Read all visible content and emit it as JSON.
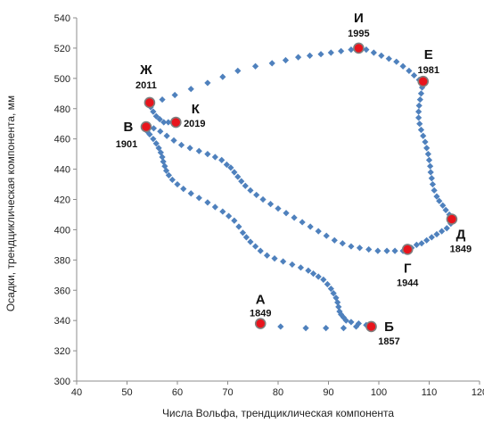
{
  "chart_data": {
    "type": "scatter",
    "title": "",
    "xlabel": "Числа Вольфа, трендциклическая компонента",
    "ylabel": "Осадки,  трендциклическая компонента, мм",
    "xlim": [
      40,
      120
    ],
    "ylim": [
      300,
      540
    ],
    "xticks": [
      "40",
      "50",
      "60",
      "70",
      "80",
      "90",
      "100",
      "110",
      "120"
    ],
    "yticks": [
      "300",
      "320",
      "340",
      "360",
      "380",
      "400",
      "420",
      "440",
      "460",
      "480",
      "500",
      "520",
      "540"
    ],
    "grid": false,
    "colors": {
      "series": "#4f81bd",
      "highlight_fill": "#e8141c",
      "highlight_stroke": "#7f7f7f",
      "axis": "#8c8c8c"
    },
    "series": [
      {
        "values": [
          [
            76.5,
            338
          ],
          [
            80.5,
            336
          ],
          [
            85.5,
            335
          ],
          [
            89.5,
            335
          ],
          [
            93,
            335
          ],
          [
            95.5,
            336
          ],
          [
            97.5,
            337
          ],
          [
            98.5,
            336
          ],
          [
            98,
            336
          ],
          [
            96,
            338
          ],
          [
            94.5,
            339
          ],
          [
            93.5,
            340
          ],
          [
            93,
            342
          ],
          [
            92.5,
            344
          ],
          [
            92.2,
            346
          ],
          [
            92,
            349
          ],
          [
            91.8,
            352
          ],
          [
            91.5,
            355
          ],
          [
            91,
            358
          ],
          [
            90.5,
            361
          ],
          [
            89.8,
            364
          ],
          [
            89,
            367
          ],
          [
            88,
            369
          ],
          [
            87,
            371
          ],
          [
            86,
            373
          ],
          [
            84.5,
            375
          ],
          [
            82.8,
            377
          ],
          [
            81,
            379
          ],
          [
            79.3,
            381
          ],
          [
            77.8,
            383
          ],
          [
            76.5,
            386
          ],
          [
            75.5,
            389
          ],
          [
            74.5,
            392
          ],
          [
            73.7,
            395
          ],
          [
            73,
            398
          ],
          [
            72.2,
            402
          ],
          [
            71.3,
            406
          ],
          [
            70.2,
            409
          ],
          [
            69,
            412
          ],
          [
            67.5,
            415
          ],
          [
            66,
            418
          ],
          [
            64.3,
            421
          ],
          [
            62.7,
            424
          ],
          [
            61.2,
            427
          ],
          [
            60,
            430
          ],
          [
            59,
            433
          ],
          [
            58.3,
            436
          ],
          [
            57.8,
            439
          ],
          [
            57.5,
            442
          ],
          [
            57.2,
            445
          ],
          [
            57,
            448
          ],
          [
            56.7,
            451
          ],
          [
            56.3,
            454
          ],
          [
            55.8,
            457
          ],
          [
            55.2,
            460
          ],
          [
            54.5,
            463
          ],
          [
            54,
            465
          ],
          [
            53.8,
            467
          ],
          [
            54.2,
            468
          ],
          [
            55.3,
            467
          ],
          [
            56.6,
            465
          ],
          [
            57.9,
            462
          ],
          [
            59.3,
            459
          ],
          [
            60.8,
            456
          ],
          [
            62.5,
            454
          ],
          [
            64.3,
            452
          ],
          [
            66,
            450
          ],
          [
            67.5,
            448
          ],
          [
            68.8,
            446
          ],
          [
            69.8,
            443
          ],
          [
            70.6,
            441
          ],
          [
            71.3,
            438
          ],
          [
            72,
            435
          ],
          [
            72.7,
            432
          ],
          [
            73.5,
            429
          ],
          [
            74.5,
            426
          ],
          [
            75.7,
            423
          ],
          [
            77,
            420
          ],
          [
            78.5,
            417
          ],
          [
            80,
            414
          ],
          [
            81.6,
            411
          ],
          [
            83.2,
            408
          ],
          [
            84.8,
            405
          ],
          [
            86.4,
            402
          ],
          [
            88,
            399
          ],
          [
            89.6,
            396
          ],
          [
            91.2,
            393
          ],
          [
            92.8,
            391
          ],
          [
            94.5,
            389
          ],
          [
            96.2,
            388
          ],
          [
            98,
            387
          ],
          [
            99.8,
            386
          ],
          [
            101.6,
            386
          ],
          [
            103.2,
            386
          ],
          [
            104.8,
            386
          ],
          [
            105.7,
            387
          ],
          [
            106.5,
            388
          ],
          [
            107.5,
            390
          ],
          [
            108.5,
            391
          ],
          [
            109.5,
            393
          ],
          [
            110.5,
            395
          ],
          [
            111.5,
            397
          ],
          [
            112.5,
            399
          ],
          [
            113.5,
            401
          ],
          [
            114.3,
            404
          ],
          [
            114.5,
            407
          ],
          [
            114,
            410
          ],
          [
            113.3,
            413
          ],
          [
            112.7,
            416
          ],
          [
            112,
            419
          ],
          [
            111.5,
            422
          ],
          [
            111,
            426
          ],
          [
            110.7,
            430
          ],
          [
            110.5,
            434
          ],
          [
            110.3,
            438
          ],
          [
            110.2,
            442
          ],
          [
            110,
            446
          ],
          [
            109.8,
            450
          ],
          [
            109.5,
            454
          ],
          [
            109.2,
            458
          ],
          [
            108.8,
            462
          ],
          [
            108.4,
            466
          ],
          [
            108.1,
            470
          ],
          [
            107.9,
            474
          ],
          [
            107.9,
            478
          ],
          [
            108,
            482
          ],
          [
            108.2,
            486
          ],
          [
            108.4,
            490
          ],
          [
            108.6,
            494
          ],
          [
            108.8,
            497
          ],
          [
            108,
            499
          ],
          [
            107,
            502
          ],
          [
            106,
            505
          ],
          [
            104.8,
            508
          ],
          [
            103.5,
            511
          ],
          [
            102,
            513
          ],
          [
            100.5,
            515
          ],
          [
            99,
            517
          ],
          [
            97.5,
            519
          ],
          [
            96,
            520
          ],
          [
            94.5,
            519
          ],
          [
            92.5,
            518
          ],
          [
            90.5,
            517
          ],
          [
            88.5,
            516
          ],
          [
            86.3,
            515
          ],
          [
            84,
            514
          ],
          [
            81.5,
            512
          ],
          [
            78.8,
            510
          ],
          [
            75.5,
            508
          ],
          [
            72,
            505
          ],
          [
            69,
            501
          ],
          [
            66,
            497
          ],
          [
            62.7,
            493
          ],
          [
            59.5,
            489
          ],
          [
            57,
            486
          ],
          [
            54.5,
            484
          ],
          [
            54.7,
            481
          ],
          [
            55.2,
            478
          ],
          [
            55.8,
            475
          ],
          [
            56.5,
            473
          ],
          [
            57.3,
            471
          ],
          [
            58.2,
            471
          ],
          [
            59,
            471
          ],
          [
            59.7,
            471
          ]
        ]
      }
    ],
    "annotations": [
      {
        "letter": "А",
        "year": "1849",
        "x": 76.5,
        "y": 338
      },
      {
        "letter": "Б",
        "year": "1857",
        "x": 98.5,
        "y": 336
      },
      {
        "letter": "В",
        "year": "1901",
        "x": 53.8,
        "y": 468
      },
      {
        "letter": "Г",
        "year": "1944",
        "x": 105.7,
        "y": 387
      },
      {
        "letter": "Д",
        "year": "1849",
        "x": 114.5,
        "y": 407
      },
      {
        "letter": "Е",
        "year": "1981",
        "x": 108.8,
        "y": 498
      },
      {
        "letter": "И",
        "year": "1995",
        "x": 96,
        "y": 520
      },
      {
        "letter": "Ж",
        "year": "2011",
        "x": 54.5,
        "y": 484
      },
      {
        "letter": "К",
        "year": "2019",
        "x": 59.7,
        "y": 471
      }
    ]
  }
}
